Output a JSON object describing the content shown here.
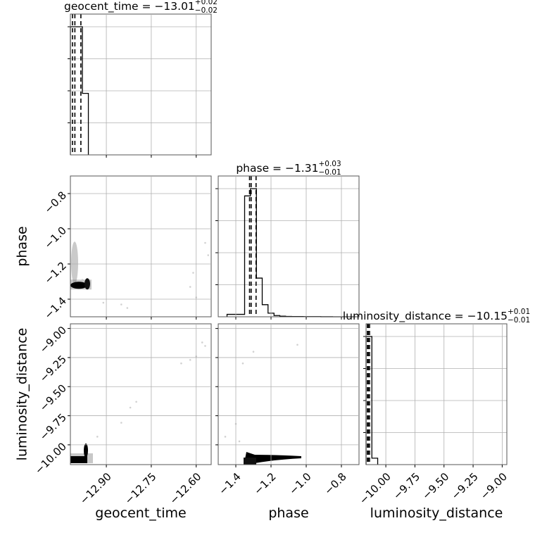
{
  "chart_data": {
    "type": "corner",
    "parameters": [
      "geocent_time",
      "phase",
      "luminosity_distance"
    ],
    "titles": {
      "geocent_time": {
        "name": "geocent_time",
        "value": "−13.01",
        "plus": "+0.02",
        "minus": "−0.02"
      },
      "phase": {
        "name": "phase",
        "value": "−1.31",
        "plus": "+0.03",
        "minus": "−0.01"
      },
      "luminosity_distance": {
        "name": "luminosity_distance",
        "value": "−10.15",
        "plus": "+0.01",
        "minus": "−0.01"
      }
    },
    "xlabels": {
      "geocent_time": "geocent_time",
      "phase": "phase",
      "luminosity_distance": "luminosity_distance"
    },
    "ylabels": {
      "phase": "phase",
      "luminosity_distance": "luminosity_distance"
    },
    "ranges": {
      "geocent_time": [
        -13.02,
        -12.55
      ],
      "phase": [
        -1.5,
        -0.7
      ],
      "luminosity_distance": [
        -10.17,
        -8.96
      ]
    },
    "ticks": {
      "geocent_time": [
        -12.9,
        -12.75,
        -12.6
      ],
      "phase": [
        -1.4,
        -1.2,
        -1.0,
        -0.8
      ],
      "luminosity_distance": [
        -10.0,
        -9.75,
        -9.5,
        -9.25,
        -9.0
      ]
    },
    "tick_labels": {
      "geocent_time": [
        "−12.90",
        "−12.75",
        "−12.60"
      ],
      "phase": [
        "−1.4",
        "−1.2",
        "−1.0",
        "−0.8"
      ],
      "luminosity_distance": [
        "−10.00",
        "−9.75",
        "−9.50",
        "−9.25",
        "−9.00"
      ]
    },
    "quantiles": {
      "geocent_time": [
        -13.013,
        -13.005,
        -12.985
      ],
      "phase": [
        -1.322,
        -1.313,
        -1.285
      ],
      "luminosity_distance": [
        -10.158,
        -10.151,
        -10.14
      ]
    },
    "histograms": {
      "geocent_time": {
        "edges": [
          -13.02,
          -12.98,
          -12.96
        ],
        "counts": [
          1.0,
          0.48
        ]
      },
      "phase": {
        "edges": [
          -1.45,
          -1.35,
          -1.317,
          -1.283,
          -1.25,
          -1.217,
          -1.183,
          -1.15,
          -1.117,
          -1.083,
          -1.05,
          -1.017,
          -0.983,
          -0.95,
          -0.917,
          -0.883,
          -0.85,
          -0.817,
          -0.783,
          -0.75,
          -0.717
        ],
        "counts": [
          0.02,
          1.0,
          1.06,
          0.32,
          0.1,
          0.03,
          0.01,
          0.005,
          0.003,
          0.002,
          0.002,
          0.001,
          0.001,
          0.001,
          0.0005,
          0.0005,
          0.0,
          0.0,
          0.0,
          0.0
        ]
      },
      "luminosity_distance": {
        "edges": [
          -10.17,
          -10.12,
          -10.07
        ],
        "counts": [
          1.0,
          0.05
        ]
      }
    },
    "scatter": {
      "geocent_time|phase": {
        "x": [
          -13.01,
          -13.005,
          -12.995,
          -12.98,
          -12.91,
          -12.85,
          -12.83,
          -12.62,
          -12.6,
          -12.61,
          -12.57,
          -12.56
        ],
        "y": [
          -1.31,
          -1.3,
          -1.32,
          -1.29,
          -1.42,
          -1.43,
          -1.45,
          -1.33,
          -1.39,
          -1.25,
          -1.08,
          -1.15
        ]
      },
      "geocent_time|luminosity_distance": {
        "x": [
          -13.005,
          -12.99,
          -12.97,
          -12.93,
          -12.85,
          -12.82,
          -12.8,
          -12.65,
          -12.62,
          -12.6,
          -12.58,
          -12.57
        ],
        "y": [
          -10.15,
          -10.13,
          -10.1,
          -9.93,
          -9.81,
          -9.68,
          -9.63,
          -9.3,
          -9.27,
          -9.24,
          -9.12,
          -9.15
        ]
      },
      "phase|luminosity_distance": {
        "x": [
          -1.35,
          -1.32,
          -1.28,
          -1.25,
          -1.2,
          -1.15,
          -1.12,
          -1.05,
          -1.3,
          -1.4,
          -1.46,
          -1.38,
          -1.36
        ],
        "y": [
          -10.15,
          -10.14,
          -10.13,
          -10.12,
          -10.11,
          -10.1,
          -10.11,
          -9.14,
          -9.2,
          -9.82,
          -9.93,
          -9.97,
          -9.3
        ]
      }
    },
    "grid": true,
    "legend": "none"
  }
}
